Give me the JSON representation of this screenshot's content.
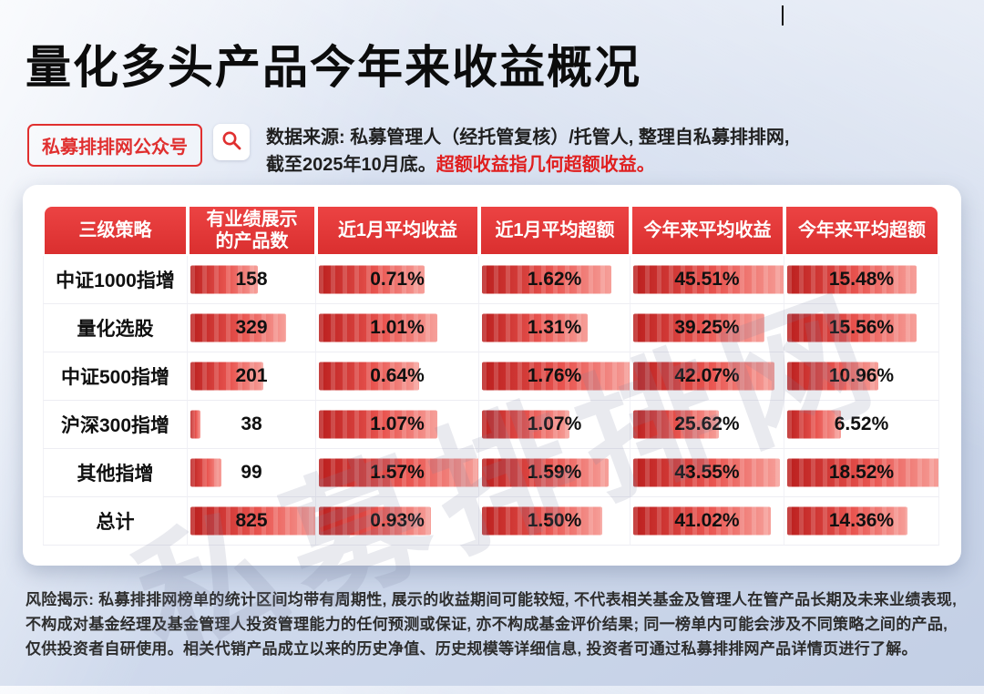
{
  "header": {
    "title": "量化多头产品今年来收益概况",
    "badge_label": "私募排排网公众号",
    "source_line1": "数据来源: 私募管理人（经托管复核）/托管人, 整理自私募排排网,",
    "source_line2_prefix": "截至2025年10月底。",
    "source_line2_highlight": "超额收益指几何超额收益。"
  },
  "watermark": "私募排排网",
  "footer": {
    "disclaimer": "风险揭示: 私募排排网榜单的统计区间均带有周期性, 展示的收益期间可能较短, 不代表相关基金及管理人在管产品长期及未来业绩表现, 不构成对基金经理及基金管理人投资管理能力的任何预测或保证, 亦不构成基金评价结果; 同一榜单内可能会涉及不同策略之间的产品, 仅供投资者自研使用。相关代销产品成立以来的历史净值、历史规模等详细信息, 投资者可通过私募排排网产品详情页进行了解。"
  },
  "colors": {
    "accent_red": "#e02f2f",
    "header_red": "#da2f2f",
    "bar_dark": "#bb1f1e",
    "bar_light": "#f6a09a",
    "background": "#cfd9ec"
  },
  "chart_data": {
    "type": "table",
    "title": "量化多头产品今年来收益概况",
    "columns": [
      "三级策略",
      "有业绩展示\n的产品数",
      "近1月平均收益",
      "近1月平均超额",
      "今年来平均收益",
      "今年来平均超额"
    ],
    "rows": [
      {
        "label": "中证1000指增",
        "values": [
          "158",
          "0.71%",
          "1.62%",
          "45.51%",
          "15.48%"
        ],
        "bars": [
          53,
          65,
          86,
          100,
          84
        ]
      },
      {
        "label": "量化选股",
        "values": [
          "329",
          "1.01%",
          "1.31%",
          "39.25%",
          "15.56%"
        ],
        "bars": [
          75,
          73,
          70,
          86,
          84
        ]
      },
      {
        "label": "中证500指增",
        "values": [
          "201",
          "0.64%",
          "1.76%",
          "42.07%",
          "10.96%"
        ],
        "bars": [
          57,
          62,
          100,
          92,
          59
        ]
      },
      {
        "label": "沪深300指增",
        "values": [
          "38",
          "1.07%",
          "1.07%",
          "25.62%",
          "6.52%"
        ],
        "bars": [
          8,
          73,
          58,
          56,
          35
        ]
      },
      {
        "label": "其他指增",
        "values": [
          "99",
          "1.57%",
          "1.59%",
          "43.55%",
          "18.52%"
        ],
        "bars": [
          24,
          100,
          84,
          96,
          100
        ]
      },
      {
        "label": "总计",
        "values": [
          "825",
          "0.93%",
          "1.50%",
          "41.02%",
          "14.36%"
        ],
        "bars": [
          100,
          69,
          80,
          90,
          78
        ]
      }
    ]
  }
}
